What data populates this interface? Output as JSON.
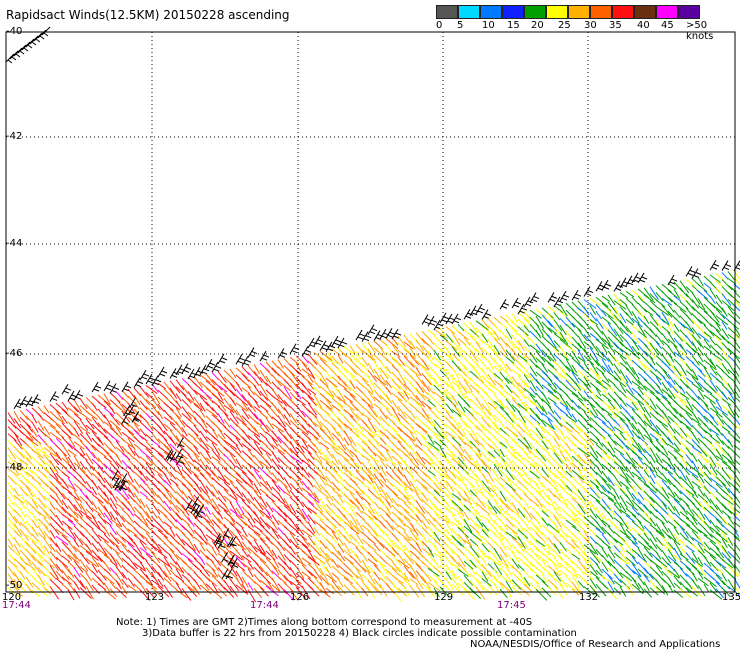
{
  "title": "Rapidsact Winds(12.5KM) 20150228 ascending",
  "colorbar": {
    "labels": [
      "0",
      "5",
      "10",
      "15",
      "20",
      "25",
      "30",
      "35",
      "40",
      "45",
      ">50 knots"
    ],
    "colors": [
      "#555555",
      "#00d8ff",
      "#0078ff",
      "#1020ff",
      "#00a000",
      "#ffff00",
      "#ffb000",
      "#ff6000",
      "#ff1010",
      "#6a3010",
      "#ff00ff",
      "#5a00a0"
    ]
  },
  "axes": {
    "lat_labels": [
      "-40",
      "-42",
      "-44",
      "-46",
      "-48",
      "-50"
    ],
    "lon_labels": [
      "120",
      "123",
      "126",
      "129",
      "132",
      "135"
    ],
    "time_labels": [
      "17:44",
      "17:44",
      "17:45"
    ]
  },
  "notes": {
    "line1": "Note: 1) Times are GMT 2)Times along bottom correspond to measurement at -40S",
    "line2": "3)Data buffer is 22 hrs from 20150228 4) Black circles indicate possible contamination",
    "line3": "NOAA/NESDIS/Office of Research and Applications"
  }
}
